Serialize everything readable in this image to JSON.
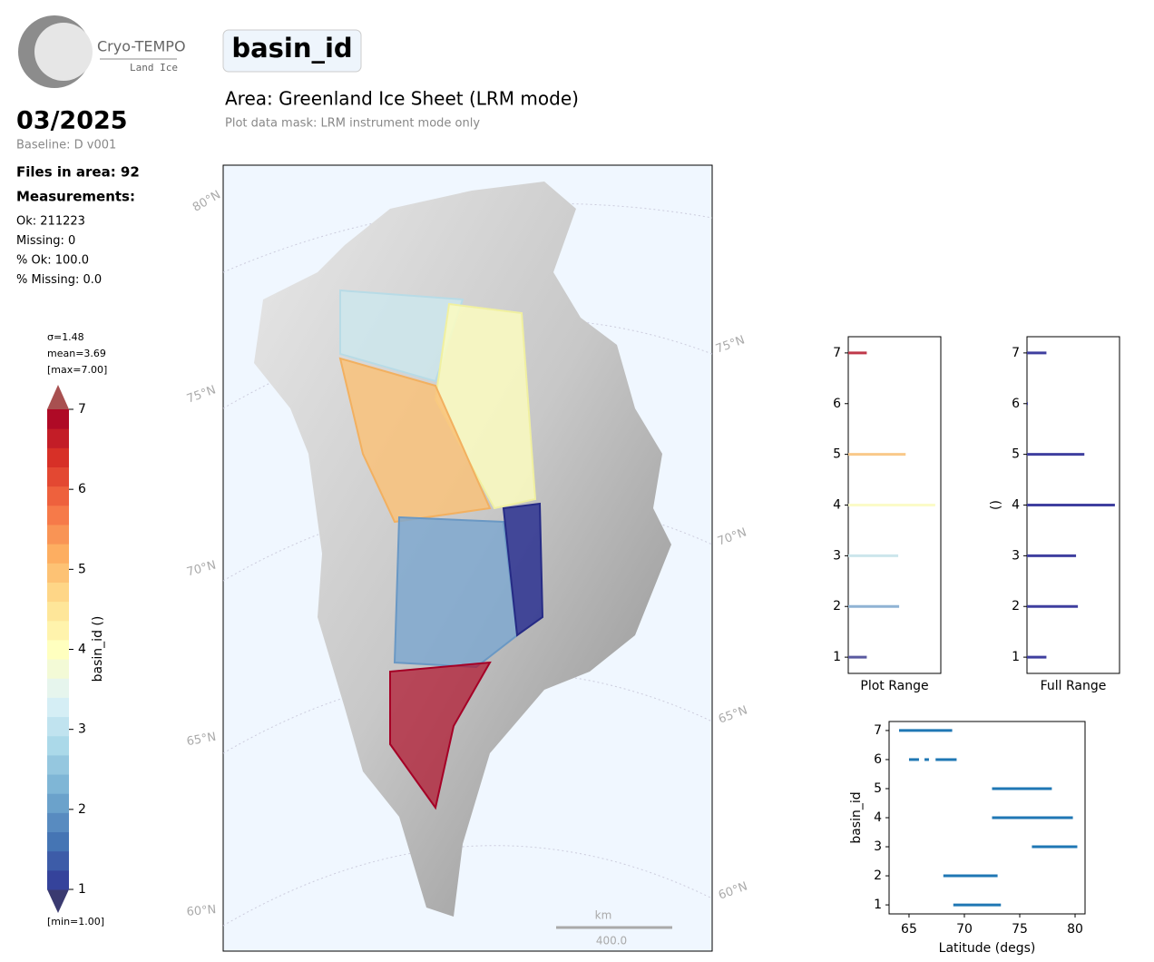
{
  "logo": {
    "name": "Cryo-TEMPO",
    "sub": "Land Ice"
  },
  "date": "03/2025",
  "baseline": "Baseline: D v001",
  "files": "Files in area: 92",
  "measurements": "Measurements:",
  "stats": [
    "Ok: 211223",
    "Missing: 0",
    "% Ok: 100.0",
    "% Missing: 0.0"
  ],
  "title": "basin_id",
  "area": "Area: Greenland Ice Sheet (LRM mode)",
  "mask": "Plot data mask: LRM instrument mode only",
  "map": {
    "lat_left": [
      "80°N",
      "75°N",
      "70°N",
      "65°N",
      "60°N"
    ],
    "lat_right": [
      "75°N",
      "70°N",
      "65°N",
      "60°N"
    ],
    "scale_unit": "km",
    "scale_value": "400.0"
  },
  "colorbar": {
    "sigma": "σ=1.48",
    "mean": "mean=3.69",
    "max": "[max=7.00]",
    "min": "[min=1.00]",
    "label": "basin_id ()",
    "lim": [
      1,
      7
    ],
    "ticks": [
      1,
      2,
      3,
      4,
      5,
      6,
      7
    ],
    "bands": 25
  },
  "chart_data": [
    {
      "type": "hbar",
      "xlabel": "Plot Range",
      "y": [
        1,
        2,
        3,
        4,
        5,
        6,
        7
      ],
      "values": [
        20,
        55,
        54,
        94,
        62,
        0,
        20
      ],
      "colors": [
        "#5a5aa0",
        "#8fb3d4",
        "#cce6ec",
        "#fbfbc8",
        "#f9c98a",
        "#eeeeee",
        "#c0394a"
      ],
      "xlim": [
        0,
        100
      ],
      "ylim": [
        0.68,
        7.32
      ],
      "yticks": [
        1,
        2,
        3,
        4,
        5,
        6,
        7
      ]
    },
    {
      "type": "hbar",
      "xlabel": "Full Range",
      "ylabel": "()",
      "y": [
        1,
        2,
        3,
        4,
        5,
        6,
        7
      ],
      "values": [
        21,
        55,
        53,
        95,
        62,
        1,
        21
      ],
      "color": "#3f3f9f",
      "xlim": [
        0,
        100
      ],
      "ylim": [
        0.68,
        7.32
      ],
      "yticks": [
        1,
        2,
        3,
        4,
        5,
        6,
        7
      ]
    },
    {
      "type": "range",
      "xlabel": "Latitude (degs)",
      "ylabel": "basin_id",
      "y": [
        7,
        6,
        6,
        6,
        5,
        4,
        3,
        2,
        1
      ],
      "x_start": [
        64.1,
        65.0,
        66.4,
        67.4,
        72.5,
        72.5,
        76.1,
        68.1,
        69.0
      ],
      "x_end": [
        68.9,
        65.9,
        66.8,
        69.3,
        77.9,
        79.8,
        80.2,
        73.0,
        73.3
      ],
      "color": "#1f77b4",
      "xlim": [
        63.2,
        80.9
      ],
      "ylim": [
        0.69,
        7.31
      ],
      "xticks": [
        65,
        70,
        75,
        80
      ],
      "yticks": [
        1,
        2,
        3,
        4,
        5,
        6,
        7
      ]
    }
  ]
}
